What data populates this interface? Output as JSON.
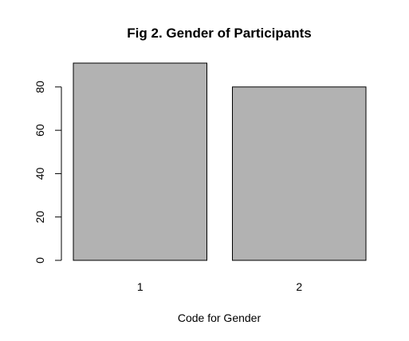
{
  "chart_data": {
    "type": "bar",
    "title": "Fig 2. Gender of Participants",
    "xlabel": "Code for Gender",
    "ylabel": "",
    "categories": [
      "1",
      "2"
    ],
    "values": [
      91,
      80
    ],
    "ylim": [
      0,
      91
    ],
    "yticks": [
      0,
      20,
      40,
      60,
      80
    ],
    "grid": false,
    "bar_color": "#b2b2b2",
    "outline_color": "#000000"
  }
}
